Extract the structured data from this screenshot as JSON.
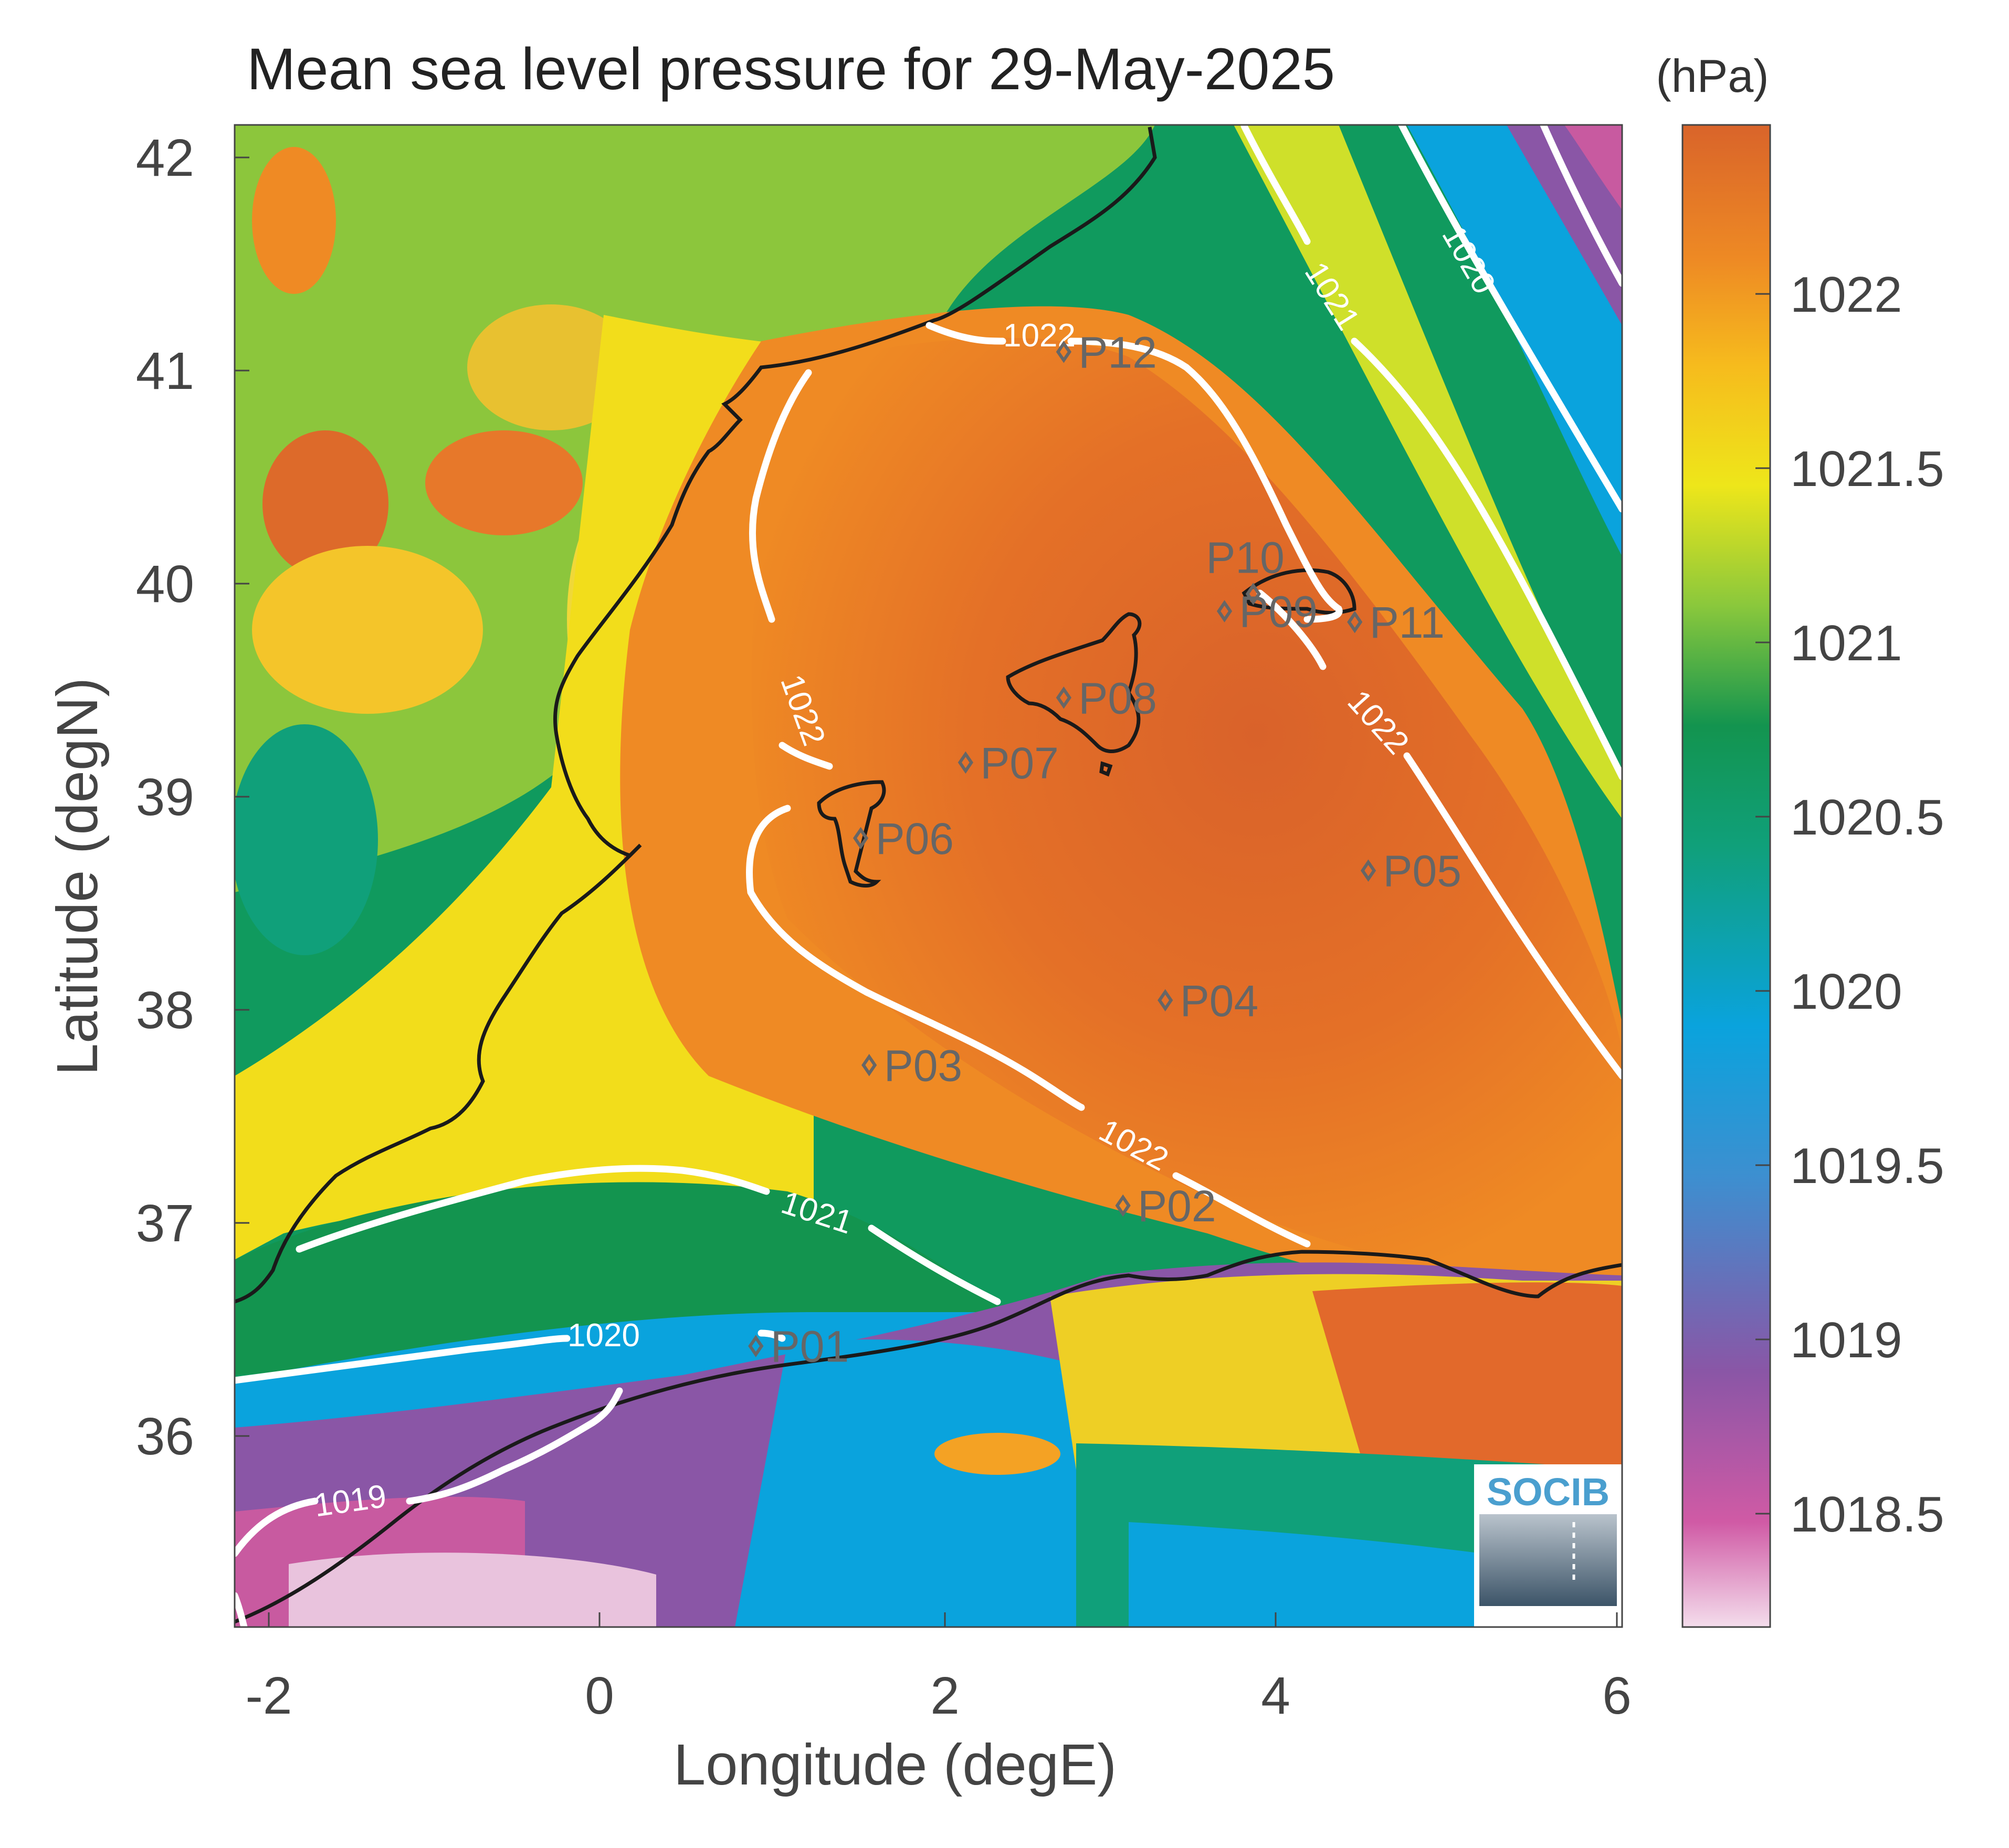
{
  "title": "Mean sea level pressure for 29-May-2025",
  "units": "(hPa)",
  "xlabel": "Longitude (degE)",
  "ylabel": "Latitude (degN)",
  "x_ticks": [
    "-2",
    "0",
    "2",
    "4",
    "6"
  ],
  "y_ticks": [
    "42",
    "41",
    "40",
    "39",
    "38",
    "37",
    "36"
  ],
  "colorbar_ticks": [
    "1022",
    "1021.5",
    "1021",
    "1020.5",
    "1020",
    "1019.5",
    "1019",
    "1018.5"
  ],
  "contour_labels": [
    "1022",
    "1022",
    "1022",
    "1022",
    "1021",
    "1021",
    "1020",
    "1020",
    "1019"
  ],
  "stations": [
    "P01",
    "P02",
    "P03",
    "P04",
    "P05",
    "P06",
    "P07",
    "P08",
    "P09",
    "P10",
    "P11",
    "P12"
  ],
  "logo_text": "SOCIB",
  "colors": {
    "high_pressure": "#d9642a",
    "orange": "#ee8a24",
    "yellow": "#f5e416",
    "green": "#109a5e",
    "blue": "#0aa3dd",
    "purple": "#8a56a6",
    "pink": "#e9c3dd",
    "contour": "#ffffff",
    "coastline": "#1a1a1a",
    "station_marker": "#666666"
  },
  "chart_data": {
    "type": "heatmap",
    "title": "Mean sea level pressure for 29-May-2025",
    "xlabel": "Longitude (degE)",
    "ylabel": "Latitude (degN)",
    "xlim": [
      -2.2,
      6
    ],
    "ylim": [
      35.2,
      42.15
    ],
    "colorbar": {
      "label": "(hPa)",
      "range": [
        1018.2,
        1022.4
      ],
      "ticks": [
        1018.5,
        1019,
        1019.5,
        1020,
        1020.5,
        1021,
        1021.5,
        1022
      ]
    },
    "contour_levels": [
      1019,
      1020,
      1021,
      1022
    ],
    "stations": [
      {
        "name": "P01",
        "lon": 0.88,
        "lat": 36.5
      },
      {
        "name": "P02",
        "lon": 3.05,
        "lat": 37.15
      },
      {
        "name": "P03",
        "lon": 1.55,
        "lat": 37.8
      },
      {
        "name": "P04",
        "lon": 3.3,
        "lat": 38.1
      },
      {
        "name": "P05",
        "lon": 4.5,
        "lat": 38.7
      },
      {
        "name": "P06",
        "lon": 1.5,
        "lat": 38.85
      },
      {
        "name": "P07",
        "lon": 2.12,
        "lat": 39.2
      },
      {
        "name": "P08",
        "lon": 2.7,
        "lat": 39.5
      },
      {
        "name": "P09",
        "lon": 3.65,
        "lat": 39.9
      },
      {
        "name": "P10",
        "lon": 3.82,
        "lat": 39.98
      },
      {
        "name": "P11",
        "lon": 4.42,
        "lat": 39.85
      },
      {
        "name": "P12",
        "lon": 2.7,
        "lat": 41.1
      }
    ]
  }
}
